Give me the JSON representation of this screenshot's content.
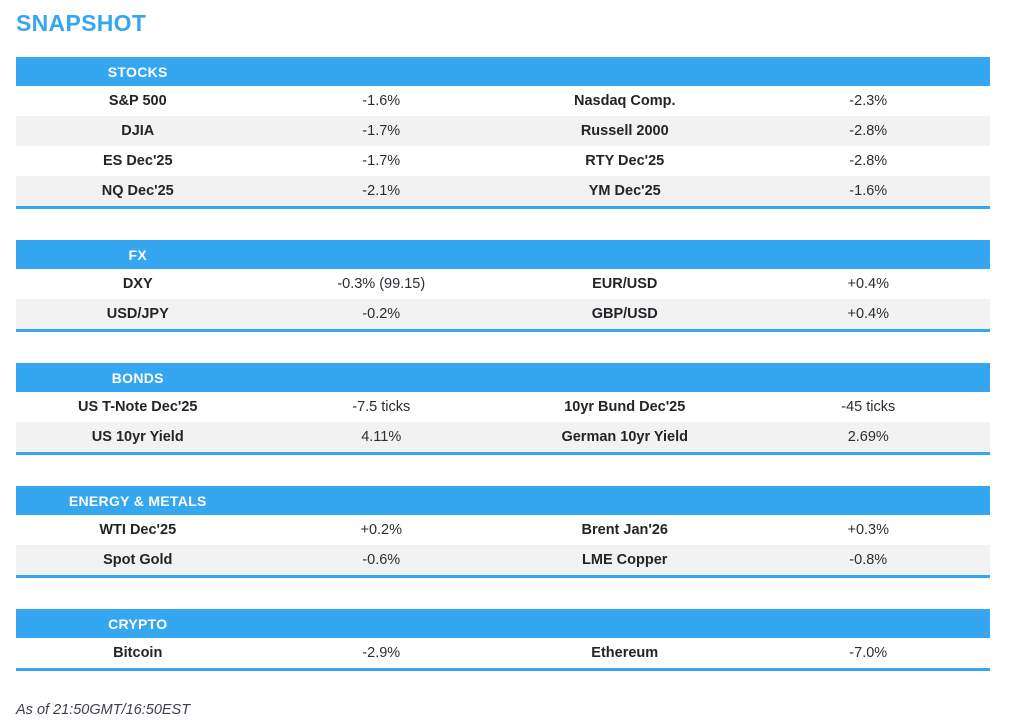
{
  "title": "SNAPSHOT",
  "footer": "As of 21:50GMT/16:50EST",
  "colors": {
    "accent": "#35A7F0",
    "row_alt": "#F2F2F3",
    "text": "#222428"
  },
  "sections": [
    {
      "header": "STOCKS",
      "rows": [
        {
          "l_label": "S&P 500",
          "l_value": "-1.6%",
          "r_label": "Nasdaq Comp.",
          "r_value": "-2.3%"
        },
        {
          "l_label": "DJIA",
          "l_value": "-1.7%",
          "r_label": "Russell 2000",
          "r_value": "-2.8%"
        },
        {
          "l_label": "ES Dec'25",
          "l_value": "-1.7%",
          "r_label": "RTY Dec'25",
          "r_value": "-2.8%"
        },
        {
          "l_label": "NQ Dec'25",
          "l_value": "-2.1%",
          "r_label": "YM Dec'25",
          "r_value": "-1.6%"
        }
      ]
    },
    {
      "header": "FX",
      "rows": [
        {
          "l_label": "DXY",
          "l_value": "-0.3% (99.15)",
          "r_label": "EUR/USD",
          "r_value": "+0.4%"
        },
        {
          "l_label": "USD/JPY",
          "l_value": "-0.2%",
          "r_label": "GBP/USD",
          "r_value": "+0.4%"
        }
      ]
    },
    {
      "header": "BONDS",
      "rows": [
        {
          "l_label": "US T-Note Dec'25",
          "l_value": "-7.5 ticks",
          "r_label": "10yr Bund Dec'25",
          "r_value": "-45 ticks"
        },
        {
          "l_label": "US 10yr Yield",
          "l_value": "4.11%",
          "r_label": "German 10yr Yield",
          "r_value": "2.69%"
        }
      ]
    },
    {
      "header": "ENERGY & METALS",
      "rows": [
        {
          "l_label": "WTI Dec'25",
          "l_value": "+0.2%",
          "r_label": "Brent Jan'26",
          "r_value": "+0.3%"
        },
        {
          "l_label": "Spot Gold",
          "l_value": "-0.6%",
          "r_label": "LME Copper",
          "r_value": "-0.8%"
        }
      ]
    },
    {
      "header": "CRYPTO",
      "rows": [
        {
          "l_label": "Bitcoin",
          "l_value": "-2.9%",
          "r_label": "Ethereum",
          "r_value": "-7.0%"
        }
      ]
    }
  ]
}
